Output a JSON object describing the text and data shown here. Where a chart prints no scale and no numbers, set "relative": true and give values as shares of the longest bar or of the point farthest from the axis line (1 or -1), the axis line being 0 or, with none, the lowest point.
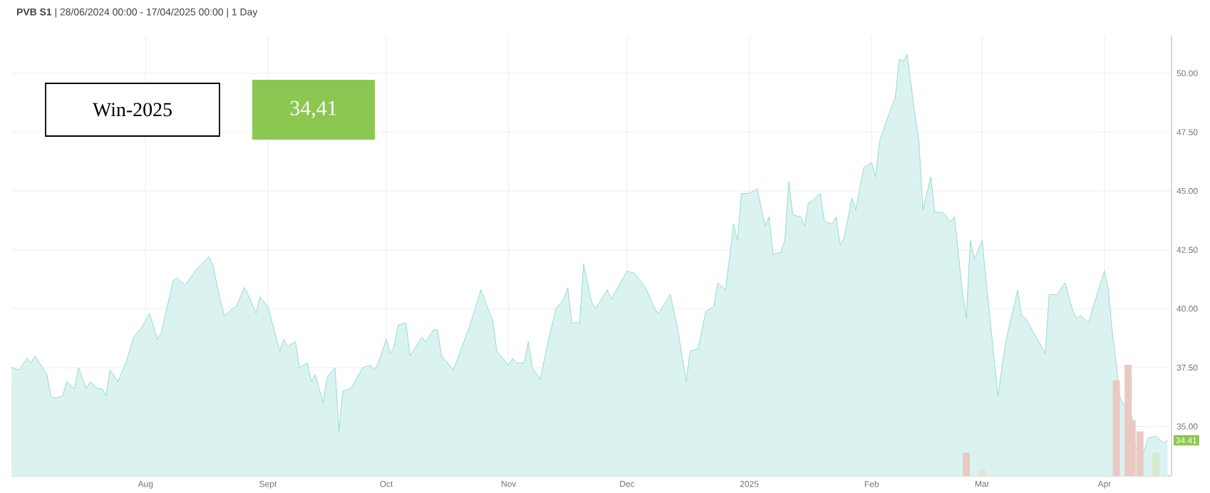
{
  "chart_data": [
    {
      "type": "area",
      "title": "**PVB S1** | 28/06/2024 00:00 - 17/04/2025 00:00 | 1 Day",
      "color": "#7fd3c9",
      "grid": true,
      "xlim": [
        "2024-06-28",
        "2025-04-18"
      ],
      "xticks": [
        {
          "value": "2024-08-01",
          "label": "Aug"
        },
        {
          "value": "2024-09-01",
          "label": "Sept"
        },
        {
          "value": "2024-10-01",
          "label": "Oct"
        },
        {
          "value": "2024-11-01",
          "label": "Nov"
        },
        {
          "value": "2024-12-01",
          "label": "Dec"
        },
        {
          "value": "2025-01-01",
          "label": "2025"
        },
        {
          "value": "2025-02-01",
          "label": "Feb"
        },
        {
          "value": "2025-03-01",
          "label": "Mar"
        },
        {
          "value": "2025-04-01",
          "label": "Apr"
        }
      ],
      "ylim": [
        32.9,
        51.6
      ],
      "yticks": [
        {
          "value": 35,
          "label": "35.00"
        },
        {
          "value": 37.5,
          "label": "37.50"
        },
        {
          "value": 40,
          "label": "40.00"
        },
        {
          "value": 42.5,
          "label": "42.50"
        },
        {
          "value": 45,
          "label": "45.00"
        },
        {
          "value": 47.5,
          "label": "47.50"
        },
        {
          "value": 50,
          "label": "50.00"
        }
      ],
      "x": [
        "2024-06-28",
        "2024-06-30",
        "2024-07-02",
        "2024-07-03",
        "2024-07-04",
        "2024-07-07",
        "2024-07-08",
        "2024-07-09",
        "2024-07-11",
        "2024-07-12",
        "2024-07-14",
        "2024-07-15",
        "2024-07-17",
        "2024-07-18",
        "2024-07-20",
        "2024-07-21",
        "2024-07-22",
        "2024-07-23",
        "2024-07-25",
        "2024-07-27",
        "2024-07-29",
        "2024-07-31",
        "2024-08-02",
        "2024-08-04",
        "2024-08-05",
        "2024-08-08",
        "2024-08-09",
        "2024-08-11",
        "2024-08-14",
        "2024-08-17",
        "2024-08-18",
        "2024-08-20",
        "2024-08-21",
        "2024-08-23",
        "2024-08-24",
        "2024-08-26",
        "2024-08-27",
        "2024-08-29",
        "2024-08-30",
        "2024-09-01",
        "2024-09-04",
        "2024-09-05",
        "2024-09-06",
        "2024-09-08",
        "2024-09-09",
        "2024-09-11",
        "2024-09-12",
        "2024-09-13",
        "2024-09-15",
        "2024-09-16",
        "2024-09-18",
        "2024-09-19",
        "2024-09-20",
        "2024-09-22",
        "2024-09-25",
        "2024-09-27",
        "2024-09-28",
        "2024-09-29",
        "2024-10-01",
        "2024-10-02",
        "2024-10-03",
        "2024-10-04",
        "2024-10-06",
        "2024-10-07",
        "2024-10-10",
        "2024-10-11",
        "2024-10-13",
        "2024-10-14",
        "2024-10-15",
        "2024-10-18",
        "2024-10-22",
        "2024-10-25",
        "2024-10-27",
        "2024-10-28",
        "2024-10-29",
        "2024-11-01",
        "2024-11-02",
        "2024-11-03",
        "2024-11-05",
        "2024-11-06",
        "2024-11-07",
        "2024-11-09",
        "2024-11-11",
        "2024-11-13",
        "2024-11-15",
        "2024-11-16",
        "2024-11-17",
        "2024-11-19",
        "2024-11-20",
        "2024-11-22",
        "2024-11-23",
        "2024-11-26",
        "2024-11-27",
        "2024-12-01",
        "2024-12-03",
        "2024-12-06",
        "2024-12-08",
        "2024-12-09",
        "2024-12-12",
        "2024-12-14",
        "2024-12-16",
        "2024-12-17",
        "2024-12-19",
        "2024-12-21",
        "2024-12-23",
        "2024-12-24",
        "2024-12-26",
        "2024-12-28",
        "2024-12-29",
        "2024-12-30",
        "2025-01-01",
        "2025-01-03",
        "2025-01-05",
        "2025-01-06",
        "2025-01-07",
        "2025-01-09",
        "2025-01-10",
        "2025-01-11",
        "2025-01-12",
        "2025-01-14",
        "2025-01-15",
        "2025-01-16",
        "2025-01-17",
        "2025-01-19",
        "2025-01-20",
        "2025-01-22",
        "2025-01-23",
        "2025-01-24",
        "2025-01-25",
        "2025-01-27",
        "2025-01-28",
        "2025-01-30",
        "2025-02-01",
        "2025-02-02",
        "2025-02-03",
        "2025-02-05",
        "2025-02-07",
        "2025-02-08",
        "2025-02-09",
        "2025-02-10",
        "2025-02-12",
        "2025-02-13",
        "2025-02-14",
        "2025-02-16",
        "2025-02-17",
        "2025-02-19",
        "2025-02-21",
        "2025-02-22",
        "2025-02-24",
        "2025-02-25",
        "2025-02-26",
        "2025-02-27",
        "2025-03-01",
        "2025-03-02",
        "2025-03-05",
        "2025-03-07",
        "2025-03-10",
        "2025-03-11",
        "2025-03-12",
        "2025-03-17",
        "2025-03-18",
        "2025-03-20",
        "2025-03-22",
        "2025-03-24",
        "2025-03-25",
        "2025-03-26",
        "2025-03-28",
        "2025-03-29",
        "2025-04-01",
        "2025-04-02",
        "2025-04-03",
        "2025-04-05",
        "2025-04-06",
        "2025-04-08",
        "2025-04-09",
        "2025-04-11",
        "2025-04-12",
        "2025-04-14",
        "2025-04-16",
        "2025-04-17"
      ],
      "values": [
        37.5,
        37.4,
        37.9,
        37.7,
        38.0,
        37.2,
        36.3,
        36.2,
        36.3,
        36.9,
        36.6,
        37.5,
        36.6,
        36.9,
        36.6,
        36.6,
        36.3,
        37.4,
        36.9,
        37.7,
        38.8,
        39.2,
        39.8,
        38.7,
        39.0,
        41.2,
        41.3,
        41.0,
        41.7,
        42.2,
        41.9,
        40.3,
        39.7,
        40.0,
        40.1,
        40.9,
        40.6,
        39.8,
        40.5,
        40.1,
        38.2,
        38.7,
        38.4,
        38.6,
        37.5,
        37.7,
        36.9,
        37.2,
        36.0,
        37.1,
        37.5,
        34.8,
        36.5,
        36.6,
        37.5,
        37.6,
        37.4,
        37.7,
        38.7,
        38.1,
        38.4,
        39.3,
        39.4,
        38.0,
        38.8,
        38.6,
        39.1,
        39.1,
        38.0,
        37.4,
        39.2,
        40.8,
        39.9,
        39.5,
        38.2,
        37.6,
        37.9,
        37.7,
        37.7,
        38.6,
        37.5,
        37.0,
        38.6,
        40.0,
        40.4,
        40.9,
        39.4,
        39.4,
        41.9,
        40.3,
        40.0,
        40.8,
        40.4,
        41.6,
        41.5,
        40.8,
        40.0,
        39.8,
        40.6,
        39.0,
        36.9,
        38.2,
        38.3,
        39.9,
        40.1,
        41.1,
        40.8,
        43.6,
        42.9,
        44.9,
        44.9,
        45.1,
        43.5,
        43.9,
        42.3,
        42.4,
        42.9,
        45.4,
        44.0,
        43.9,
        43.5,
        44.5,
        44.6,
        44.9,
        43.7,
        43.6,
        43.9,
        42.7,
        43.0,
        44.7,
        44.2,
        46.0,
        46.2,
        45.6,
        47.1,
        48.1,
        49.0,
        50.6,
        50.5,
        50.8,
        48.2,
        47.1,
        44.2,
        45.6,
        44.1,
        44.1,
        43.7,
        43.9,
        40.7,
        39.6,
        42.9,
        42.1,
        42.9,
        41.2,
        36.3,
        38.6,
        40.8,
        39.7,
        39.6,
        38.1,
        40.6,
        40.6,
        41.1,
        39.9,
        39.6,
        39.7,
        39.4,
        40.0,
        41.6,
        40.8,
        39.0,
        36.2,
        35.9,
        35.4,
        34.0,
        33.9,
        34.5,
        34.6,
        34.3,
        34.41
      ],
      "annotations": [
        "Win-2025",
        "34,41",
        {
          "text": "34.41",
          "x": "2025-04-17",
          "y": 34.41
        }
      ]
    },
    {
      "type": "bar",
      "relative": true,
      "xlim": [
        "2024-06-28",
        "2025-04-18"
      ],
      "x": [
        "2025-02-25",
        "2025-03-01",
        "2025-04-04",
        "2025-04-07",
        "2025-04-08",
        "2025-04-10",
        "2025-04-14"
      ],
      "values": [
        0.21,
        0.06,
        0.86,
        1,
        0.5,
        0.4,
        0.21
      ],
      "colors": [
        "#ebc9c2",
        "#dde8d8",
        "#ebc9c2",
        "#ebc9c2",
        "#ebc9c2",
        "#ebc9c2",
        "#d6ead2"
      ]
    }
  ]
}
